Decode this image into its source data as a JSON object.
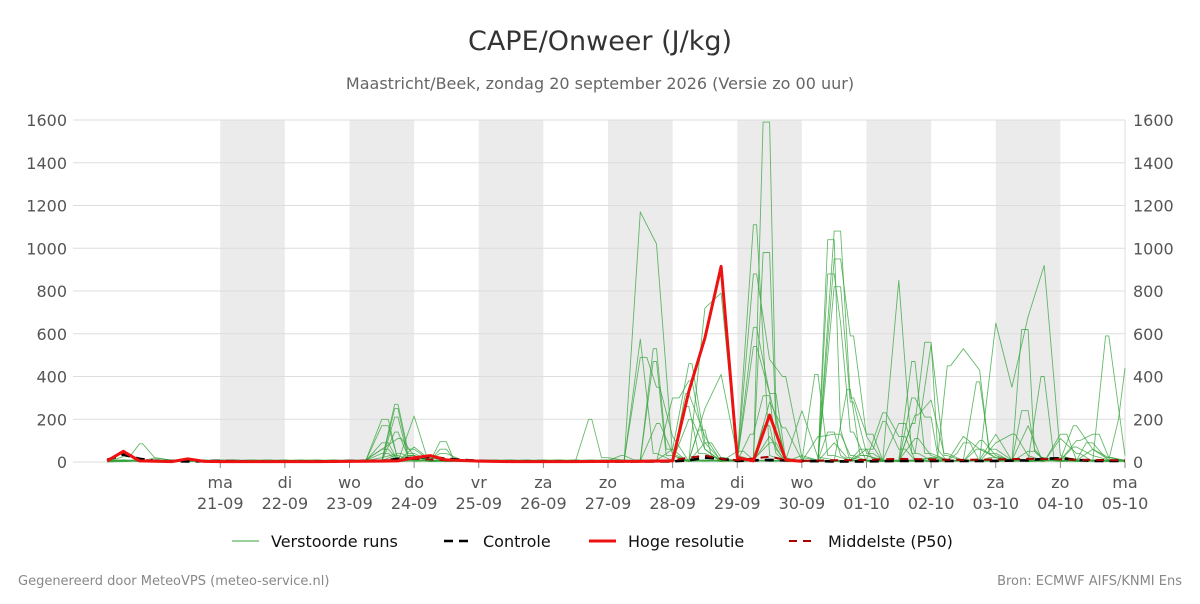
{
  "chart_data": {
    "type": "line",
    "title": "CAPE/Onweer (J/kg)",
    "subtitle": "Maastricht/Beek, zondag 20 september 2026 (Versie zo 00 uur)",
    "ylim": [
      0,
      1600
    ],
    "yticks": [
      "0",
      "200",
      "400",
      "600",
      "800",
      "1000",
      "1200",
      "1400",
      "1600"
    ],
    "xlim": [
      0,
      15
    ],
    "day_ticks": [
      {
        "pos": 1,
        "day": "ma",
        "date": "21-09"
      },
      {
        "pos": 2,
        "day": "di",
        "date": "22-09"
      },
      {
        "pos": 3,
        "day": "wo",
        "date": "23-09"
      },
      {
        "pos": 4,
        "day": "do",
        "date": "24-09"
      },
      {
        "pos": 5,
        "day": "vr",
        "date": "25-09"
      },
      {
        "pos": 6,
        "day": "za",
        "date": "26-09"
      },
      {
        "pos": 7,
        "day": "zo",
        "date": "27-09"
      },
      {
        "pos": 8,
        "day": "ma",
        "date": "28-09"
      },
      {
        "pos": 9,
        "day": "di",
        "date": "29-09"
      },
      {
        "pos": 10,
        "day": "wo",
        "date": "30-09"
      },
      {
        "pos": 11,
        "day": "do",
        "date": "01-10"
      },
      {
        "pos": 12,
        "day": "vr",
        "date": "02-10"
      },
      {
        "pos": 13,
        "day": "za",
        "date": "03-10"
      },
      {
        "pos": 14,
        "day": "zo",
        "date": "04-10"
      },
      {
        "pos": 15,
        "day": "ma",
        "date": "05-10"
      }
    ],
    "night_bands": [
      [
        1,
        2
      ],
      [
        3,
        4
      ],
      [
        5,
        6
      ],
      [
        7,
        8
      ],
      [
        9,
        10
      ],
      [
        11,
        12
      ],
      [
        13,
        14
      ]
    ],
    "grid": true,
    "legend_position": "bottom",
    "colors": {
      "ensemble": "#33a33a",
      "control": "#000000",
      "highres": "#ee1111",
      "median": "#aa0000",
      "band": "#ebebeb",
      "grid": "#dddddd"
    },
    "ensemble_peaks": [
      [
        [
          -0.4,
          25
        ],
        [
          -0.2,
          85
        ],
        [
          0.1,
          15
        ],
        [
          6.9,
          10
        ],
        [
          7.5,
          1170
        ],
        [
          7.75,
          1020
        ],
        [
          8.0,
          30
        ],
        [
          8.5,
          720
        ],
        [
          8.75,
          790
        ],
        [
          9.0,
          25
        ],
        [
          9.4,
          1590
        ],
        [
          9.6,
          220
        ],
        [
          10.0,
          30
        ]
      ],
      [
        [
          3.7,
          270
        ],
        [
          3.9,
          60
        ],
        [
          7.5,
          575
        ],
        [
          7.7,
          40
        ],
        [
          10.4,
          1040
        ],
        [
          10.6,
          150
        ],
        [
          10.9,
          30
        ],
        [
          11.7,
          180
        ],
        [
          11.9,
          560
        ],
        [
          12.1,
          60
        ],
        [
          13.0,
          650
        ],
        [
          13.25,
          350
        ],
        [
          13.5,
          680
        ],
        [
          13.75,
          920
        ],
        [
          14.0,
          30
        ],
        [
          14.7,
          590
        ],
        [
          15.0,
          30
        ]
      ],
      [
        [
          3.7,
          250
        ],
        [
          3.9,
          40
        ],
        [
          4.4,
          95
        ],
        [
          4.6,
          20
        ],
        [
          9.3,
          1110
        ],
        [
          9.5,
          30
        ],
        [
          10.6,
          1080
        ],
        [
          10.8,
          300
        ],
        [
          11.1,
          130
        ],
        [
          11.5,
          850
        ],
        [
          11.7,
          40
        ],
        [
          12.0,
          550
        ],
        [
          12.2,
          30
        ],
        [
          13.4,
          620
        ],
        [
          13.6,
          50
        ]
      ],
      [
        [
          3.7,
          210
        ],
        [
          3.9,
          30
        ],
        [
          8.2,
          320
        ],
        [
          8.5,
          120
        ],
        [
          9.4,
          980
        ],
        [
          9.6,
          150
        ],
        [
          10.4,
          880
        ],
        [
          10.6,
          650
        ],
        [
          10.8,
          140
        ],
        [
          12.1,
          20
        ],
        [
          12.3,
          450
        ],
        [
          12.5,
          530
        ],
        [
          12.75,
          430
        ],
        [
          12.9,
          40
        ],
        [
          13.4,
          240
        ],
        [
          13.6,
          60
        ]
      ],
      [
        [
          3.6,
          200
        ],
        [
          4.0,
          215
        ],
        [
          4.2,
          20
        ],
        [
          7.6,
          490
        ],
        [
          7.8,
          350
        ],
        [
          8.0,
          120
        ],
        [
          9.3,
          880
        ],
        [
          9.5,
          480
        ],
        [
          9.7,
          400
        ],
        [
          10.0,
          20
        ],
        [
          10.6,
          950
        ],
        [
          10.8,
          590
        ],
        [
          11.0,
          120
        ],
        [
          12.7,
          375
        ],
        [
          12.9,
          60
        ]
      ],
      [
        [
          3.6,
          170
        ],
        [
          3.9,
          30
        ],
        [
          7.7,
          530
        ],
        [
          7.9,
          60
        ],
        [
          8.3,
          460
        ],
        [
          8.5,
          90
        ],
        [
          9.3,
          630
        ],
        [
          9.6,
          320
        ],
        [
          10.0,
          240
        ],
        [
          10.3,
          20
        ],
        [
          11.8,
          220
        ],
        [
          12.0,
          290
        ],
        [
          12.2,
          40
        ],
        [
          13.0,
          130
        ],
        [
          13.5,
          170
        ],
        [
          13.7,
          20
        ]
      ],
      [
        [
          3.7,
          140
        ],
        [
          3.9,
          30
        ],
        [
          8.1,
          300
        ],
        [
          8.3,
          380
        ],
        [
          8.5,
          60
        ],
        [
          9.3,
          540
        ],
        [
          9.5,
          320
        ],
        [
          10.6,
          820
        ],
        [
          10.8,
          280
        ],
        [
          11.1,
          40
        ],
        [
          11.7,
          300
        ],
        [
          11.9,
          210
        ],
        [
          12.1,
          30
        ],
        [
          14.1,
          130
        ],
        [
          14.4,
          90
        ],
        [
          14.7,
          20
        ]
      ],
      [
        [
          3.5,
          60
        ],
        [
          3.8,
          110
        ],
        [
          4.0,
          30
        ],
        [
          7.7,
          470
        ],
        [
          7.9,
          30
        ],
        [
          8.5,
          250
        ],
        [
          8.75,
          410
        ],
        [
          9.0,
          30
        ],
        [
          9.5,
          280
        ],
        [
          9.7,
          160
        ],
        [
          10.7,
          340
        ],
        [
          10.9,
          30
        ],
        [
          11.7,
          470
        ],
        [
          11.9,
          40
        ],
        [
          13.7,
          400
        ],
        [
          13.9,
          20
        ]
      ],
      [
        [
          3.6,
          40
        ],
        [
          4.0,
          70
        ],
        [
          4.4,
          40
        ],
        [
          7.8,
          180
        ],
        [
          8.0,
          40
        ],
        [
          9.2,
          130
        ],
        [
          9.4,
          310
        ],
        [
          9.6,
          60
        ],
        [
          10.2,
          410
        ],
        [
          10.4,
          30
        ],
        [
          11.3,
          230
        ],
        [
          11.6,
          120
        ],
        [
          12.0,
          20
        ],
        [
          14.2,
          170
        ],
        [
          14.5,
          60
        ],
        [
          14.9,
          200
        ],
        [
          15.0,
          440
        ]
      ],
      [
        [
          3.6,
          90
        ],
        [
          3.9,
          20
        ],
        [
          6.7,
          200
        ],
        [
          6.9,
          20
        ],
        [
          8.2,
          260
        ],
        [
          8.4,
          40
        ],
        [
          9.4,
          170
        ],
        [
          9.6,
          40
        ],
        [
          11.1,
          60
        ],
        [
          11.3,
          190
        ],
        [
          11.6,
          60
        ],
        [
          13.0,
          90
        ],
        [
          13.3,
          130
        ],
        [
          13.5,
          30
        ],
        [
          14.3,
          100
        ],
        [
          14.6,
          130
        ],
        [
          14.8,
          20
        ]
      ],
      [
        [
          3.7,
          30
        ],
        [
          4.4,
          60
        ],
        [
          4.6,
          20
        ],
        [
          8.3,
          200
        ],
        [
          8.5,
          60
        ],
        [
          9.5,
          120
        ],
        [
          9.7,
          20
        ],
        [
          10.3,
          120
        ],
        [
          10.6,
          130
        ],
        [
          10.8,
          30
        ],
        [
          12.5,
          120
        ],
        [
          12.8,
          60
        ],
        [
          13.1,
          20
        ],
        [
          14.0,
          110
        ],
        [
          14.3,
          40
        ]
      ],
      [
        [
          3.6,
          60
        ],
        [
          3.9,
          10
        ],
        [
          8.4,
          150
        ],
        [
          8.6,
          30
        ],
        [
          9.6,
          90
        ],
        [
          9.8,
          10
        ],
        [
          10.5,
          90
        ],
        [
          10.7,
          20
        ],
        [
          11.6,
          180
        ],
        [
          11.8,
          40
        ],
        [
          12.8,
          100
        ],
        [
          13.0,
          30
        ],
        [
          14.5,
          60
        ],
        [
          14.8,
          20
        ]
      ],
      [
        [
          0.0,
          20
        ],
        [
          0.3,
          5
        ],
        [
          8.0,
          60
        ],
        [
          8.2,
          10
        ],
        [
          9.1,
          50
        ],
        [
          9.3,
          10
        ],
        [
          10.9,
          60
        ],
        [
          11.1,
          10
        ],
        [
          11.8,
          110
        ],
        [
          12.0,
          30
        ],
        [
          12.7,
          60
        ],
        [
          13.0,
          20
        ],
        [
          13.6,
          50
        ],
        [
          13.9,
          10
        ]
      ],
      [
        [
          3.5,
          20
        ],
        [
          3.8,
          40
        ],
        [
          4.1,
          10
        ],
        [
          7.2,
          30
        ],
        [
          7.4,
          10
        ],
        [
          8.6,
          90
        ],
        [
          8.8,
          20
        ],
        [
          10.4,
          140
        ],
        [
          10.6,
          30
        ],
        [
          12.4,
          40
        ],
        [
          12.6,
          90
        ],
        [
          12.9,
          20
        ],
        [
          14.2,
          70
        ],
        [
          14.5,
          30
        ]
      ]
    ],
    "series": [
      {
        "name": "Controle",
        "points": [
          [
            -0.75,
            10
          ],
          [
            -0.5,
            35
          ],
          [
            -0.25,
            15
          ],
          [
            0,
            5
          ],
          [
            0.5,
            3
          ],
          [
            1.0,
            5
          ],
          [
            1.5,
            2
          ],
          [
            2.0,
            2
          ],
          [
            2.5,
            3
          ],
          [
            3.0,
            4
          ],
          [
            3.5,
            5
          ],
          [
            3.75,
            15
          ],
          [
            4.0,
            20
          ],
          [
            4.25,
            25
          ],
          [
            4.5,
            15
          ],
          [
            5.0,
            5
          ],
          [
            5.5,
            2
          ],
          [
            6.0,
            2
          ],
          [
            7.0,
            2
          ],
          [
            7.5,
            3
          ],
          [
            8.0,
            3
          ],
          [
            8.25,
            8
          ],
          [
            8.5,
            20
          ],
          [
            8.75,
            15
          ],
          [
            9.0,
            5
          ],
          [
            9.5,
            10
          ],
          [
            10.0,
            5
          ],
          [
            10.5,
            3
          ],
          [
            11.0,
            3
          ],
          [
            11.5,
            5
          ],
          [
            12.0,
            5
          ],
          [
            12.5,
            5
          ],
          [
            13.0,
            5
          ],
          [
            13.5,
            8
          ],
          [
            13.75,
            15
          ],
          [
            14.0,
            18
          ],
          [
            14.25,
            10
          ],
          [
            14.5,
            5
          ],
          [
            15.0,
            5
          ]
        ]
      },
      {
        "name": "Hoge resolutie",
        "points": [
          [
            -0.75,
            5
          ],
          [
            -0.5,
            50
          ],
          [
            -0.25,
            5
          ],
          [
            0.25,
            2
          ],
          [
            0.5,
            15
          ],
          [
            0.75,
            3
          ],
          [
            1.0,
            2
          ],
          [
            1.5,
            2
          ],
          [
            2.0,
            2
          ],
          [
            2.5,
            2
          ],
          [
            3.0,
            3
          ],
          [
            3.5,
            4
          ],
          [
            3.75,
            5
          ],
          [
            4.0,
            20
          ],
          [
            4.25,
            30
          ],
          [
            4.5,
            10
          ],
          [
            5.0,
            4
          ],
          [
            5.5,
            2
          ],
          [
            6.0,
            2
          ],
          [
            6.5,
            2
          ],
          [
            7.0,
            3
          ],
          [
            7.5,
            3
          ],
          [
            8.0,
            5
          ],
          [
            8.25,
            330
          ],
          [
            8.5,
            580
          ],
          [
            8.75,
            915
          ],
          [
            9.0,
            20
          ],
          [
            9.25,
            5
          ],
          [
            9.5,
            220
          ],
          [
            9.75,
            10
          ],
          [
            10.0,
            3
          ]
        ]
      },
      {
        "name": "Middelste (P50)",
        "points": [
          [
            -0.75,
            10
          ],
          [
            -0.5,
            45
          ],
          [
            -0.25,
            10
          ],
          [
            0.25,
            3
          ],
          [
            0.5,
            12
          ],
          [
            0.75,
            3
          ],
          [
            1.0,
            2
          ],
          [
            2.0,
            2
          ],
          [
            3.0,
            3
          ],
          [
            3.75,
            10
          ],
          [
            4.0,
            15
          ],
          [
            4.25,
            12
          ],
          [
            4.5,
            8
          ],
          [
            5.0,
            4
          ],
          [
            6.0,
            2
          ],
          [
            7.0,
            3
          ],
          [
            7.5,
            5
          ],
          [
            8.0,
            8
          ],
          [
            8.25,
            20
          ],
          [
            8.5,
            30
          ],
          [
            8.75,
            15
          ],
          [
            9.0,
            8
          ],
          [
            9.5,
            25
          ],
          [
            9.75,
            10
          ],
          [
            10.0,
            5
          ],
          [
            10.5,
            8
          ],
          [
            11.0,
            10
          ],
          [
            11.5,
            15
          ],
          [
            12.0,
            12
          ],
          [
            12.5,
            10
          ],
          [
            13.0,
            12
          ],
          [
            13.5,
            15
          ],
          [
            14.0,
            12
          ],
          [
            14.5,
            10
          ],
          [
            15.0,
            8
          ]
        ]
      }
    ],
    "legend": [
      {
        "key": "ensemble",
        "label": "Verstoorde runs"
      },
      {
        "key": "control",
        "label": "Controle"
      },
      {
        "key": "highres",
        "label": "Hoge resolutie"
      },
      {
        "key": "median",
        "label": "Middelste (P50)"
      }
    ]
  },
  "footer": {
    "left": "Gegenereerd door MeteoVPS (meteo-service.nl)",
    "right": "Bron: ECMWF AIFS/KNMI Ens"
  }
}
